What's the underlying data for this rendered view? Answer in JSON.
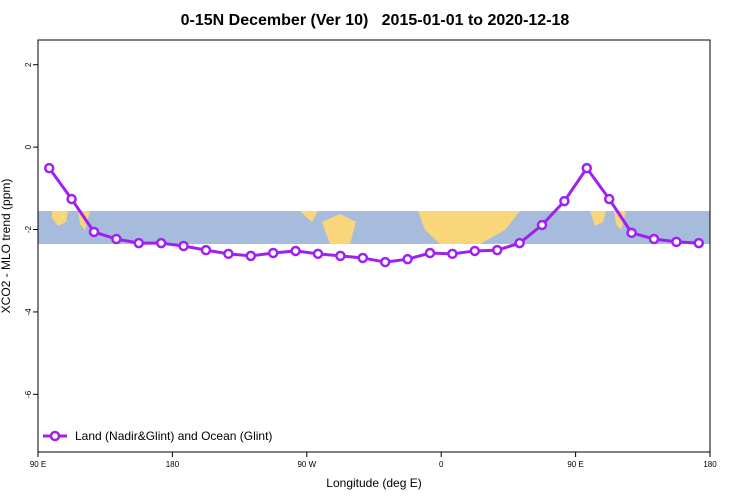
{
  "chart_data": {
    "type": "line",
    "title": "0-15N December (Ver 10)   2015-01-01 to 2020-12-18",
    "xlabel": "Longitude (deg E)",
    "ylabel": "XCO2 - MLO trend (ppm)",
    "x": [
      97.5,
      112.5,
      127.5,
      142.5,
      157.5,
      172.5,
      187.5,
      202.5,
      217.5,
      232.5,
      247.5,
      262.5,
      277.5,
      292.5,
      307.5,
      322.5,
      337.5,
      352.5,
      367.5,
      382.5,
      397.5,
      412.5,
      427.5,
      442.5,
      457.5,
      472.5,
      487.5,
      502.5,
      517.5,
      532.5
    ],
    "series": [
      {
        "name": "Land (Nadir&Glint) and Ocean (Glint)",
        "color": "#a020f0",
        "values": [
          -0.51,
          -1.26,
          -2.06,
          -2.23,
          -2.33,
          -2.33,
          -2.4,
          -2.5,
          -2.59,
          -2.64,
          -2.57,
          -2.52,
          -2.59,
          -2.64,
          -2.69,
          -2.79,
          -2.72,
          -2.57,
          -2.59,
          -2.52,
          -2.5,
          -2.33,
          -1.89,
          -1.31,
          -0.51,
          -1.26,
          -2.08,
          -2.23,
          -2.3,
          -2.33
        ]
      }
    ],
    "xlim": [
      90,
      540
    ],
    "xticks": [
      {
        "value": 90,
        "label": "90 E"
      },
      {
        "value": 180,
        "label": "180"
      },
      {
        "value": 270,
        "label": "90 W"
      },
      {
        "value": 360,
        "label": "0"
      },
      {
        "value": 450,
        "label": "90 E"
      },
      {
        "value": 540,
        "label": "180"
      }
    ],
    "ylim": [
      -7.4,
      2.6
    ],
    "yticks": [
      2,
      0,
      -2,
      -4,
      -6
    ],
    "legend": "bottom-left"
  }
}
